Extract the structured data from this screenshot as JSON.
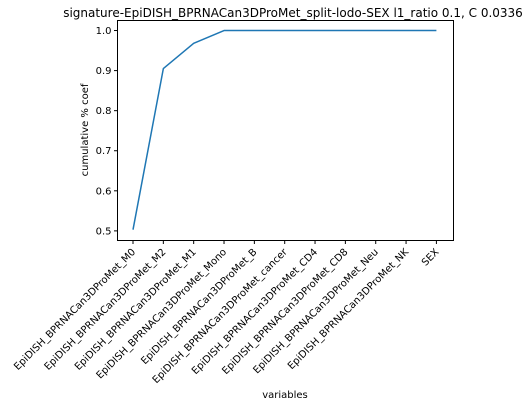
{
  "chart_data": {
    "type": "line",
    "title": "signature-EpiDISH_BPRNACan3DProMet_split-lodo-SEX l1_ratio 0.1, C 0.0336",
    "xlabel": "variables",
    "ylabel": "cumulative % coef",
    "categories": [
      "EpiDISH_BPRNACan3DProMet_M0",
      "EpiDISH_BPRNACan3DProMet_M2",
      "EpiDISH_BPRNACan3DProMet_M1",
      "EpiDISH_BPRNACan3DProMet_Mono",
      "EpiDISH_BPRNACan3DProMet_B",
      "EpiDISH_BPRNACan3DProMet_cancer",
      "EpiDISH_BPRNACan3DProMet_CD4",
      "EpiDISH_BPRNACan3DProMet_CD8",
      "EpiDISH_BPRNACan3DProMet_Neu",
      "EpiDISH_BPRNACan3DProMet_NK",
      "SEX"
    ],
    "values": [
      0.503,
      0.905,
      0.968,
      1.0,
      1.0,
      1.0,
      1.0,
      1.0,
      1.0,
      1.0,
      1.0
    ],
    "yticks": [
      0.5,
      0.6,
      0.7,
      0.8,
      0.9,
      1.0
    ],
    "ytick_labels": [
      "0.5",
      "0.6",
      "0.7",
      "0.8",
      "0.9",
      "1.0"
    ],
    "ylim": [
      0.476,
      1.025
    ],
    "grid": false,
    "legend": "none",
    "line_color": "#1f77b4"
  }
}
